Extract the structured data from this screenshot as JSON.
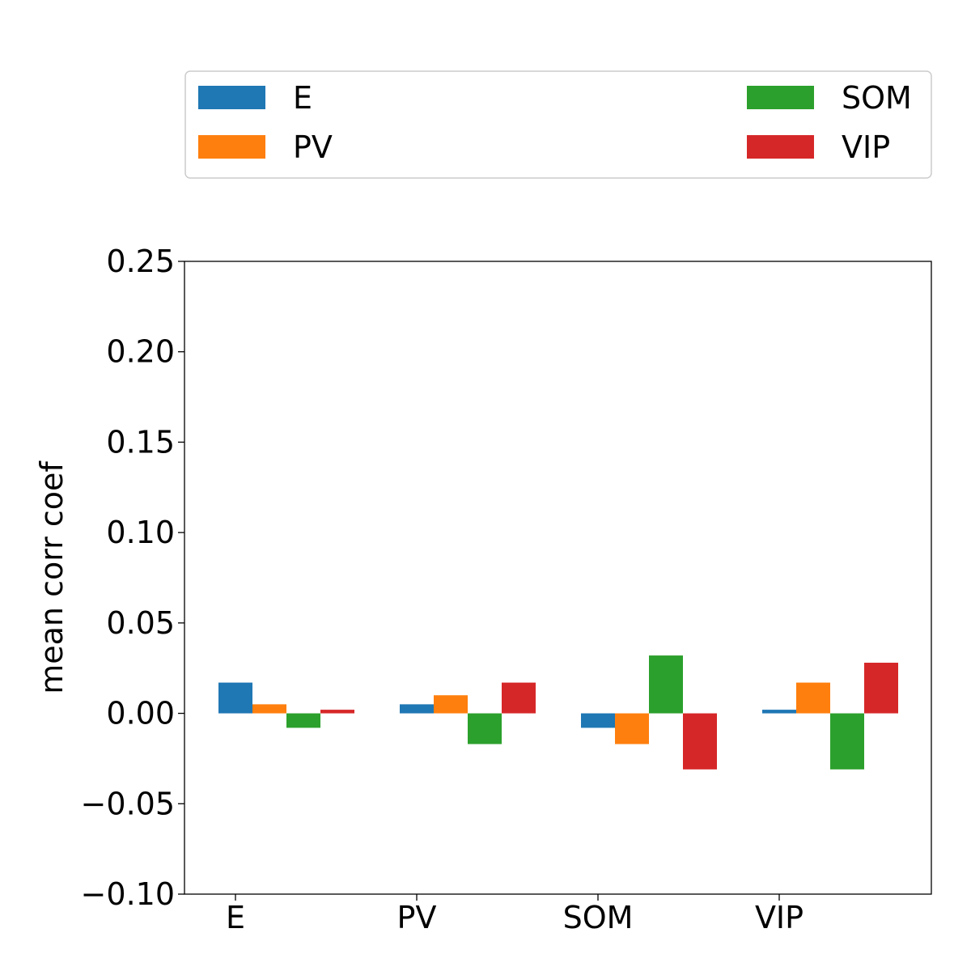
{
  "chart_data": {
    "type": "bar",
    "categories": [
      "E",
      "PV",
      "SOM",
      "VIP"
    ],
    "series": [
      {
        "name": "E",
        "color": "#1f77b4",
        "values": [
          0.017,
          0.005,
          -0.008,
          0.002
        ]
      },
      {
        "name": "PV",
        "color": "#ff7f0e",
        "values": [
          0.005,
          0.01,
          -0.017,
          0.017
        ]
      },
      {
        "name": "SOM",
        "color": "#2ca02c",
        "values": [
          -0.008,
          -0.017,
          0.032,
          -0.031
        ]
      },
      {
        "name": "VIP",
        "color": "#d62728",
        "values": [
          0.002,
          0.017,
          -0.031,
          0.028
        ]
      }
    ],
    "ylabel": "mean corr coef",
    "xlabel": "",
    "ylim": [
      -0.1,
      0.25
    ],
    "yticks": [
      "−0.10",
      "−0.05",
      "0.00",
      "0.05",
      "0.10",
      "0.15",
      "0.20",
      "0.25"
    ],
    "ytick_values": [
      -0.1,
      -0.05,
      0.0,
      0.05,
      0.1,
      0.15,
      0.2,
      0.25
    ],
    "grid": false,
    "legend": {
      "placement": "top, above plot",
      "columns": 2
    }
  }
}
